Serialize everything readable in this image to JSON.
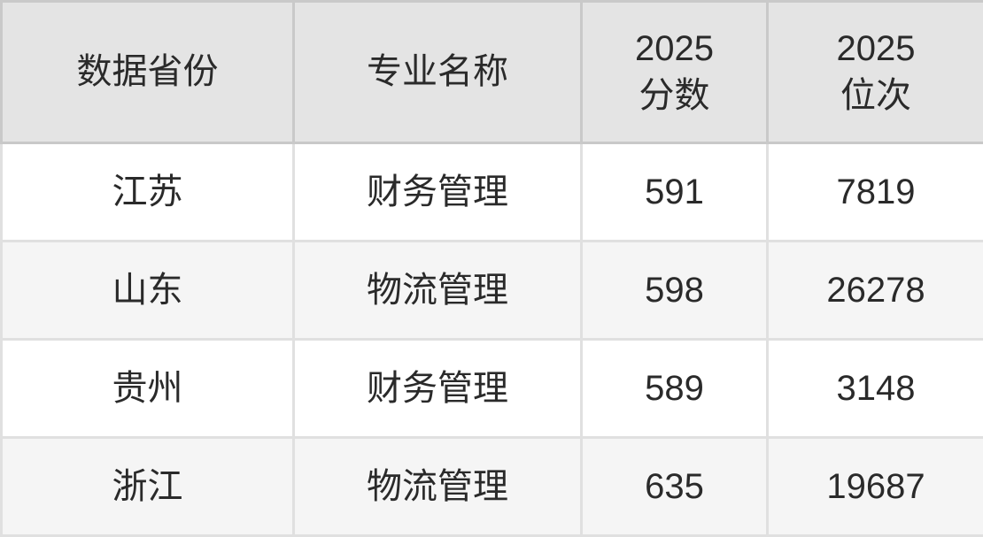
{
  "chart_data": {
    "type": "table",
    "title": "",
    "columns": [
      "数据省份",
      "专业名称",
      "2025\n分数",
      "2025\n位次"
    ],
    "rows": [
      [
        "江苏",
        "财务管理",
        "591",
        "7819"
      ],
      [
        "山东",
        "物流管理",
        "598",
        "26278"
      ],
      [
        "贵州",
        "财务管理",
        "589",
        "3148"
      ],
      [
        "浙江",
        "物流管理",
        "635",
        "19687"
      ]
    ]
  },
  "colors": {
    "header_background": "#e4e4e4",
    "header_border": "#c9c9c9",
    "body_border": "#e0e0e0",
    "row_odd_background": "#ffffff",
    "row_even_background": "#f5f5f5",
    "text": "#2a2a2a"
  }
}
